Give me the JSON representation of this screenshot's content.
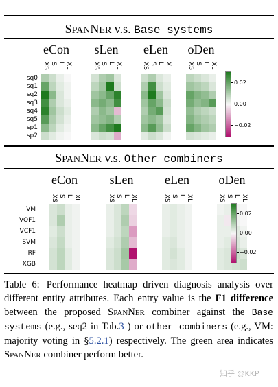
{
  "figure": {
    "panels": [
      {
        "id": "base",
        "title_prefix_big": "S",
        "title_prefix_small": "PAN",
        "title_prefix_big2": "N",
        "title_prefix_small2": "ER",
        "title_vs": " v.s. ",
        "title_mono": "Base systems",
        "groups": [
          "eCon",
          "sLen",
          "eLen",
          "oDen"
        ],
        "columns": [
          "XS",
          "S",
          "L",
          "XL"
        ],
        "rows": [
          "sq0",
          "sq1",
          "sq2",
          "sq3",
          "sq4",
          "sq5",
          "sp1",
          "sp2"
        ],
        "colorbar_ticks": [
          "0.02",
          "0.00",
          "−0.02"
        ]
      },
      {
        "id": "other",
        "title_prefix_big": "S",
        "title_prefix_small": "PAN",
        "title_prefix_big2": "N",
        "title_prefix_small2": "ER",
        "title_vs": " v.s. ",
        "title_mono": "Other combiners",
        "groups": [
          "eCon",
          "sLen",
          "eLen",
          "oDen"
        ],
        "columns": [
          "XS",
          "S",
          "L",
          "XL"
        ],
        "rows": [
          "VM",
          "VOF1",
          "VCF1",
          "SVM",
          "RF",
          "XGB"
        ],
        "colorbar_ticks": [
          "0.02",
          "0.00",
          "−0.02"
        ]
      }
    ]
  },
  "chart_data": [
    {
      "type": "heatmap",
      "title": "SpanNER v.s. Base systems",
      "groups": [
        "eCon",
        "sLen",
        "eLen",
        "oDen"
      ],
      "x": [
        "XS",
        "S",
        "L",
        "XL"
      ],
      "y": [
        "sq0",
        "sq1",
        "sq2",
        "sq3",
        "sq4",
        "sq5",
        "sp1",
        "sp2"
      ],
      "color_range": [
        -0.03,
        0.03
      ],
      "colors": {
        "positive": "#1e7a1e",
        "zero": "#f7f7f7",
        "negative": "#b0126e"
      },
      "values": {
        "eCon": [
          [
            0.01,
            0.006,
            0.002,
            0.0
          ],
          [
            0.02,
            0.008,
            0.003,
            0.001
          ],
          [
            0.03,
            0.015,
            0.004,
            0.001
          ],
          [
            0.025,
            0.01,
            0.004,
            0.002
          ],
          [
            0.028,
            0.012,
            0.006,
            0.003
          ],
          [
            0.022,
            0.01,
            0.005,
            0.002
          ],
          [
            0.015,
            0.008,
            0.003,
            0.001
          ],
          [
            0.006,
            0.003,
            0.001,
            0.0
          ]
        ],
        "sLen": [
          [
            0.005,
            0.01,
            0.012,
            0.004
          ],
          [
            0.008,
            0.012,
            0.03,
            0.006
          ],
          [
            0.012,
            0.015,
            0.02,
            0.028
          ],
          [
            0.015,
            0.018,
            0.015,
            0.025
          ],
          [
            0.01,
            0.015,
            0.012,
            -0.008
          ],
          [
            0.012,
            0.014,
            0.016,
            0.01
          ],
          [
            0.015,
            0.02,
            0.025,
            0.03
          ],
          [
            0.004,
            0.006,
            0.005,
            -0.01
          ]
        ],
        "eLen": [
          [
            0.006,
            0.01,
            0.004,
            0.002
          ],
          [
            0.01,
            0.025,
            0.006,
            0.003
          ],
          [
            0.015,
            0.03,
            0.012,
            0.004
          ],
          [
            0.012,
            0.02,
            0.015,
            0.006
          ],
          [
            0.01,
            0.018,
            0.022,
            0.005
          ],
          [
            0.012,
            0.015,
            0.012,
            0.004
          ],
          [
            0.015,
            0.022,
            0.014,
            0.006
          ],
          [
            0.003,
            0.006,
            0.004,
            0.001
          ]
        ],
        "oDen": [
          [
            0.008,
            0.006,
            0.004,
            0.002
          ],
          [
            0.012,
            0.01,
            0.008,
            0.004
          ],
          [
            0.02,
            0.016,
            0.014,
            0.01
          ],
          [
            0.018,
            0.014,
            0.016,
            0.022
          ],
          [
            0.014,
            0.01,
            0.008,
            0.006
          ],
          [
            0.016,
            0.012,
            0.01,
            0.008
          ],
          [
            0.02,
            0.016,
            0.012,
            0.01
          ],
          [
            0.005,
            0.004,
            0.003,
            0.002
          ]
        ]
      }
    },
    {
      "type": "heatmap",
      "title": "SpanNER v.s. Other combiners",
      "groups": [
        "eCon",
        "sLen",
        "eLen",
        "oDen"
      ],
      "x": [
        "XS",
        "S",
        "L",
        "XL"
      ],
      "y": [
        "VM",
        "VOF1",
        "VCF1",
        "SVM",
        "RF",
        "XGB"
      ],
      "color_range": [
        -0.03,
        0.03
      ],
      "colors": {
        "positive": "#1e7a1e",
        "zero": "#f7f7f7",
        "negative": "#b0126e"
      },
      "values": {
        "eCon": [
          [
            0.004,
            0.006,
            0.002,
            0.001
          ],
          [
            0.004,
            0.01,
            0.002,
            0.001
          ],
          [
            0.003,
            0.006,
            0.002,
            0.001
          ],
          [
            0.004,
            0.007,
            0.002,
            0.001
          ],
          [
            0.005,
            0.008,
            0.003,
            0.001
          ],
          [
            0.005,
            0.008,
            0.003,
            0.001
          ]
        ],
        "sLen": [
          [
            0.002,
            0.004,
            0.008,
            -0.004
          ],
          [
            0.002,
            0.004,
            0.01,
            -0.005
          ],
          [
            0.002,
            0.004,
            0.008,
            -0.012
          ],
          [
            0.003,
            0.005,
            0.01,
            -0.008
          ],
          [
            0.004,
            0.006,
            0.012,
            -0.03
          ],
          [
            0.004,
            0.006,
            0.011,
            -0.01
          ]
        ],
        "eLen": [
          [
            0.002,
            0.003,
            0.002,
            0.001
          ],
          [
            0.002,
            0.003,
            0.002,
            0.001
          ],
          [
            0.002,
            0.003,
            0.002,
            0.001
          ],
          [
            0.003,
            0.004,
            0.002,
            0.001
          ],
          [
            0.003,
            0.005,
            0.003,
            0.001
          ],
          [
            0.003,
            0.004,
            0.003,
            0.001
          ]
        ],
        "oDen": [
          [
            0.001,
            0.002,
            0.001,
            0.0
          ],
          [
            0.002,
            -0.002,
            0.001,
            0.0
          ],
          [
            0.002,
            0.002,
            0.003,
            0.001
          ],
          [
            0.002,
            0.003,
            0.004,
            0.002
          ],
          [
            0.003,
            0.004,
            0.006,
            0.004
          ],
          [
            0.003,
            0.004,
            0.005,
            0.006
          ]
        ]
      }
    }
  ],
  "caption": {
    "label": "Table 6:",
    "t1": "Performance heatmap driven diagnosis analysis over different entity attributes. Each entry value is the ",
    "bold": "F1 difference",
    "t2": " between the proposed ",
    "sc1_big": "S",
    "sc1_small": "PAN",
    "sc1_big2": "N",
    "sc1_small2": "ER",
    "t3": " combiner against the ",
    "mono1": "Base systems",
    "t4": " (e.g., seq2 in Tab.",
    "ref1": "3",
    "t5": " ) or ",
    "mono2": "other combiners",
    "t6": " (e.g., VM: majority voting in §",
    "ref2": "5.2.1",
    "t7": ") respectively. The green area indicates ",
    "sc2_big": "S",
    "sc2_small": "PAN",
    "sc2_big2": "N",
    "sc2_small2": "ER",
    "t8": " combiner perform better."
  },
  "watermark": "知乎 @KKP"
}
